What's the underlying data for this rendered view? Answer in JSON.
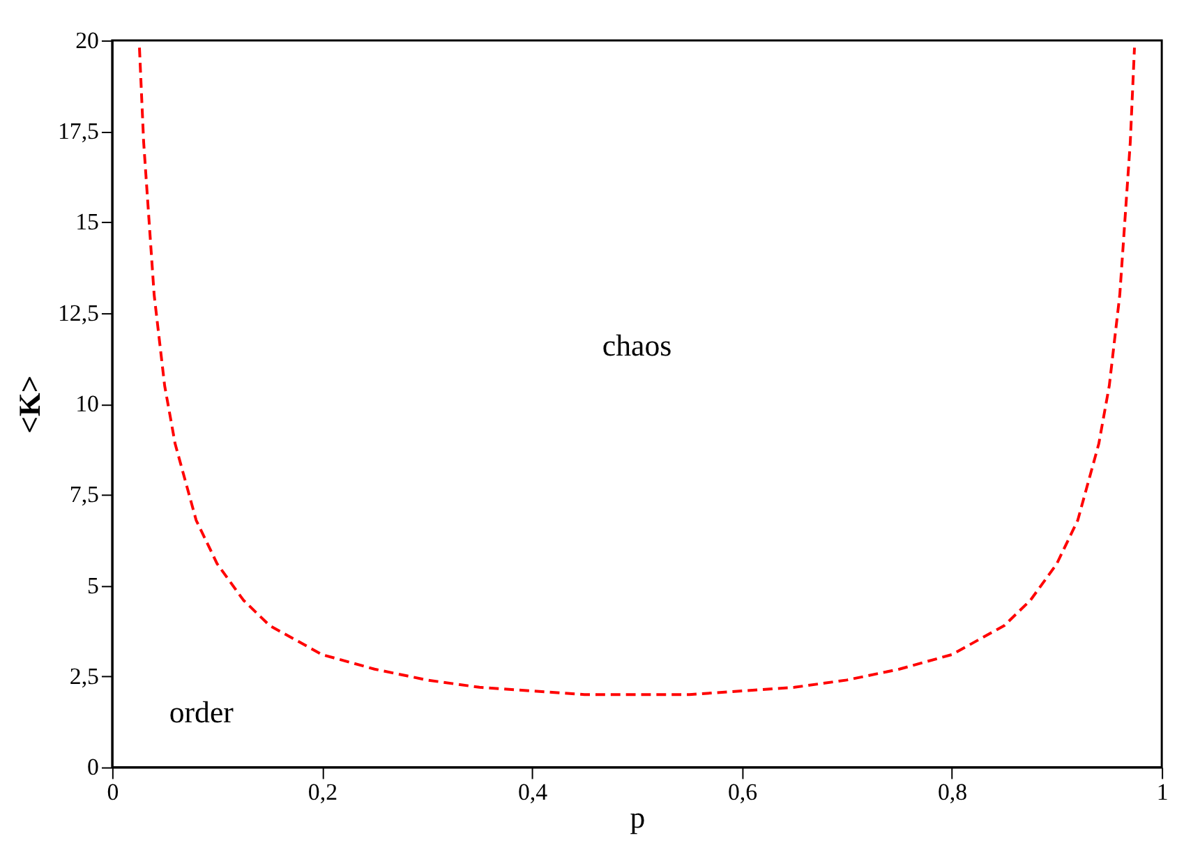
{
  "chart_data": {
    "type": "line",
    "xlabel": "p",
    "ylabel": "<K>",
    "x": [
      0.026,
      0.03,
      0.04,
      0.05,
      0.06,
      0.08,
      0.1,
      0.125,
      0.15,
      0.2,
      0.25,
      0.3,
      0.35,
      0.4,
      0.45,
      0.5,
      0.55,
      0.6,
      0.65,
      0.7,
      0.75,
      0.8,
      0.85,
      0.875,
      0.9,
      0.92,
      0.94,
      0.95,
      0.96,
      0.97,
      0.974
    ],
    "series": [
      {
        "color": "#ff0000",
        "values": [
          19.8,
          17.2,
          13.0,
          10.5,
          8.9,
          6.8,
          5.6,
          4.6,
          3.9,
          3.1,
          2.7,
          2.4,
          2.2,
          2.1,
          2.0,
          2.0,
          2.0,
          2.1,
          2.2,
          2.4,
          2.7,
          3.1,
          3.9,
          4.6,
          5.6,
          6.8,
          8.9,
          10.5,
          13.0,
          17.2,
          19.8
        ]
      }
    ],
    "line_style": "dashed",
    "marker": "none",
    "grid": false,
    "xlim": [
      0,
      1
    ],
    "ylim": [
      0,
      20
    ],
    "xticks": [
      0,
      {
        "value": 0.2,
        "label": "0,2"
      },
      {
        "value": 0.4,
        "label": "0,4"
      },
      {
        "value": 0.6,
        "label": "0,6"
      },
      {
        "value": 0.8,
        "label": "0,8"
      },
      1
    ],
    "yticks": [
      0,
      {
        "value": 2.5,
        "label": "2,5"
      },
      5,
      {
        "value": 7.5,
        "label": "7,5"
      },
      10,
      {
        "value": 12.5,
        "label": "12,5"
      },
      15,
      {
        "value": 17.5,
        "label": "17,5"
      },
      20
    ],
    "annotations": [
      "chaos",
      "order"
    ]
  }
}
